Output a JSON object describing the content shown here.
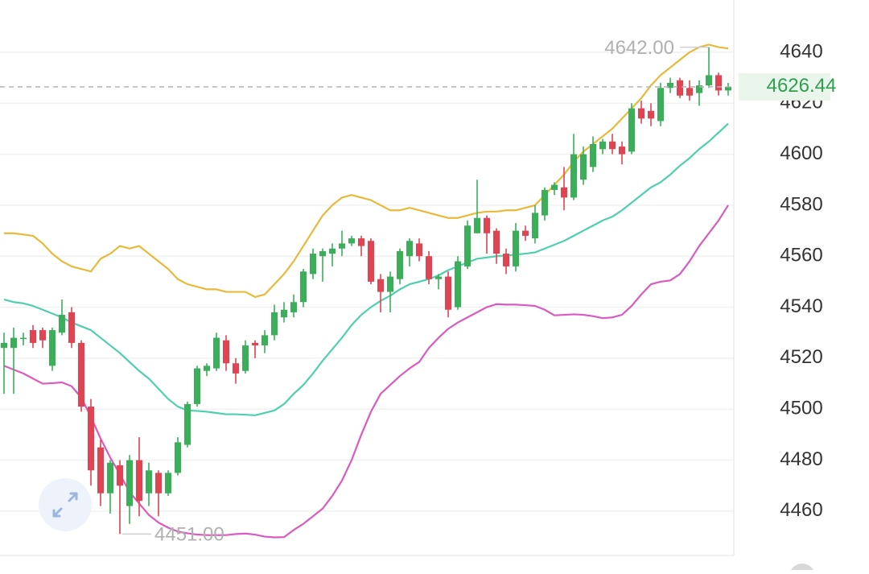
{
  "chart_data": {
    "type": "candlestick",
    "ylim": [
      4442.6,
      4660.5
    ],
    "yticks": [
      4460,
      4480,
      4500,
      4520,
      4540,
      4560,
      4580,
      4600,
      4620,
      4640
    ],
    "grid": true,
    "up_color": "#3bae5a",
    "down_color": "#e04352",
    "open": [
      4524,
      4524,
      4528,
      4531,
      4531,
      4517,
      4530,
      4538,
      4526,
      4501,
      4485,
      4467,
      4478,
      4462,
      4480,
      4467,
      4475,
      4467,
      4475,
      4486,
      4502,
      4515,
      4516,
      4527,
      4518,
      4515,
      4526,
      4525,
      4529,
      4536,
      4538,
      4542,
      4553,
      4560,
      4561,
      4563,
      4565,
      4567,
      4566,
      4551,
      4546,
      4551,
      4560,
      4565,
      4560,
      4551,
      4552,
      4540,
      4556,
      4569,
      4575,
      4570,
      4561,
      4556,
      4570,
      4567,
      4576,
      4586,
      4587,
      4583,
      4590,
      4595,
      4602,
      4605,
      4603,
      4601,
      4618,
      4617,
      4613,
      4626,
      4629,
      4626,
      4624,
      4627,
      4631,
      4625
    ],
    "high": [
      4530,
      4532,
      4530,
      4533,
      4532,
      4532,
      4543,
      4540,
      4527,
      4504,
      4488,
      4480,
      4480,
      4482,
      4489,
      4479,
      4476,
      4476,
      4489,
      4503,
      4517,
      4518,
      4530,
      4529,
      4520,
      4527,
      4527,
      4531,
      4541,
      4542,
      4545,
      4555,
      4563,
      4563,
      4565,
      4570,
      4568,
      4568,
      4567,
      4553,
      4554,
      4563,
      4567,
      4567,
      4562,
      4553,
      4554,
      4560,
      4574,
      4590,
      4576,
      4571,
      4563,
      4573,
      4572,
      4580,
      4587,
      4589,
      4595,
      4608,
      4603,
      4607,
      4606,
      4608,
      4605,
      4620,
      4621,
      4620,
      4628,
      4630,
      4630,
      4629,
      4629,
      4642,
      4632,
      4628
    ],
    "low": [
      4506,
      4506,
      4525,
      4524,
      4524,
      4515,
      4529,
      4524,
      4499,
      4470,
      4462,
      4459,
      4451,
      4455,
      4458,
      4462,
      4458,
      4466,
      4474,
      4485,
      4501,
      4513,
      4515,
      4515,
      4510,
      4514,
      4520,
      4522,
      4527,
      4534,
      4536,
      4540,
      4551,
      4550,
      4556,
      4560,
      4564,
      4560,
      4549,
      4538,
      4538,
      4549,
      4556,
      4558,
      4549,
      4547,
      4536,
      4539,
      4555,
      4569,
      4561,
      4557,
      4553,
      4554,
      4566,
      4565,
      4574,
      4584,
      4578,
      4582,
      4588,
      4593,
      4600,
      4600,
      4596,
      4600,
      4612,
      4611,
      4611,
      4624,
      4622,
      4621,
      4619,
      4626,
      4623,
      4623
    ],
    "close": [
      4526,
      4528,
      4528,
      4526,
      4527,
      4531,
      4537,
      4526,
      4501,
      4476,
      4467,
      4479,
      4470,
      4480,
      4464,
      4476,
      4467,
      4475,
      4487,
      4502,
      4516,
      4517,
      4528,
      4518,
      4514,
      4525,
      4525,
      4529,
      4538,
      4539,
      4542,
      4554,
      4561,
      4562,
      4563,
      4565,
      4567,
      4564,
      4550,
      4546,
      4552,
      4562,
      4566,
      4560,
      4551,
      4552,
      4539,
      4558,
      4572,
      4575,
      4569,
      4561,
      4556,
      4570,
      4568,
      4577,
      4586,
      4588,
      4583,
      4600,
      4600,
      4604,
      4605,
      4602,
      4600,
      4618,
      4614,
      4614,
      4626,
      4628,
      4623,
      4623,
      4627,
      4631,
      4625,
      4626.44
    ],
    "series": [
      {
        "color": "#e8b93a",
        "values": [
          4569,
          4569,
          4568.5,
          4568,
          4565,
          4561,
          4558,
          4556,
          4555,
          4554,
          4559,
          4561,
          4564,
          4563,
          4564,
          4561,
          4558,
          4555,
          4551,
          4549,
          4548,
          4547,
          4547,
          4546,
          4546,
          4546,
          4544,
          4545,
          4549,
          4553,
          4558,
          4564,
          4570,
          4576,
          4580,
          4583,
          4584,
          4583,
          4582,
          4580,
          4578,
          4578,
          4579,
          4578,
          4577,
          4576,
          4575,
          4575,
          4576,
          4577,
          4577.5,
          4577.5,
          4578,
          4578,
          4579,
          4580,
          4584,
          4588,
          4592,
          4597,
          4601,
          4604,
          4607,
          4610,
          4614,
          4618,
          4622,
          4627,
          4631,
          4634,
          4637,
          4640,
          4642,
          4643,
          4642,
          4641.5
        ]
      },
      {
        "color": "#4fcfae",
        "values": [
          4543,
          4542,
          4541.5,
          4540.5,
          4539,
          4537.5,
          4536,
          4534,
          4532.5,
          4531,
          4528,
          4525,
          4522,
          4518.5,
          4515,
          4512,
          4508,
          4504,
          4501,
          4499.5,
          4499.3,
          4499,
          4498.5,
          4498,
          4498,
          4497.8,
          4497.6,
          4498.5,
          4499.5,
          4502,
          4506,
          4509.5,
          4514,
          4519,
          4523.5,
          4528,
          4533,
          4537,
          4540,
          4542.5,
          4544.5,
          4547,
          4549,
          4550,
          4551,
          4552.5,
          4554.5,
          4556,
          4557.5,
          4559,
          4559.5,
          4560,
          4560.3,
          4560.6,
          4561,
          4561.5,
          4563,
          4564.5,
          4566,
          4568,
          4570,
          4572,
          4574,
          4575.5,
          4578,
          4581,
          4584,
          4587,
          4589,
          4592,
          4595.5,
          4598.5,
          4602,
          4605,
          4608.5,
          4612
        ]
      },
      {
        "color": "#d95bc0",
        "values": [
          4517,
          4515.5,
          4514,
          4512,
          4510,
          4510.2,
          4510.5,
          4509,
          4504.5,
          4497,
          4488.5,
          4481,
          4474.5,
          4467.5,
          4463,
          4458.5,
          4455.5,
          4453.5,
          4452,
          4451.3,
          4450.8,
          4450.6,
          4450.6,
          4450.6,
          4451,
          4451.2,
          4450.8,
          4450,
          4449.7,
          4449.8,
          4452.6,
          4455,
          4458,
          4461,
          4466,
          4472,
          4480,
          4490,
          4499,
          4506,
          4509.5,
          4513,
          4516,
          4518.5,
          4524,
          4528,
          4531.5,
          4534,
          4536,
          4538,
          4540,
          4541.2,
          4541,
          4541,
          4540.8,
          4540.5,
          4539,
          4536.8,
          4537,
          4537.2,
          4537,
          4536.5,
          4535.7,
          4536,
          4537,
          4540.5,
          4545,
          4549,
          4550,
          4550.5,
          4553,
          4558,
          4564,
          4569,
          4574,
          4580
        ]
      }
    ],
    "max_label": {
      "value": 4642,
      "label": "4642.00"
    },
    "min_label": {
      "value": 4451,
      "label": "4451.00"
    },
    "last_price": 4626.44,
    "last_price_color": "#2e9e4f"
  }
}
